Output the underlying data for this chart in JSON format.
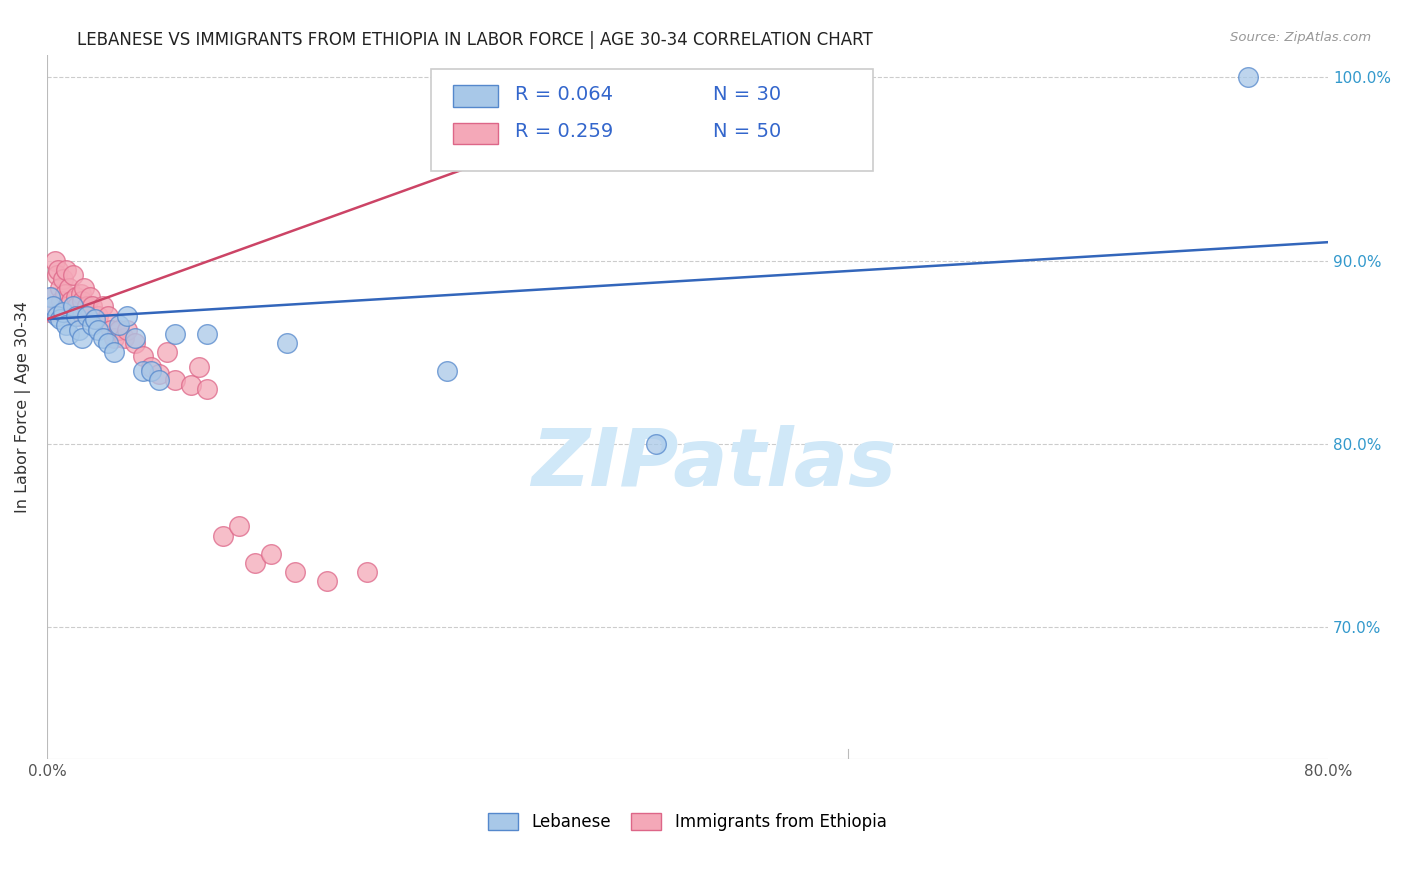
{
  "title": "LEBANESE VS IMMIGRANTS FROM ETHIOPIA IN LABOR FORCE | AGE 30-34 CORRELATION CHART",
  "source": "Source: ZipAtlas.com",
  "ylabel": "In Labor Force | Age 30-34",
  "xmin": 0.0,
  "xmax": 0.8,
  "ymin": 0.628,
  "ymax": 1.012,
  "xtick_labels": [
    "0.0%",
    "",
    "",
    "",
    "",
    "",
    "",
    "",
    "80.0%"
  ],
  "xtick_values": [
    0.0,
    0.1,
    0.2,
    0.3,
    0.4,
    0.5,
    0.6,
    0.7,
    0.8
  ],
  "ytick_labels": [
    "70.0%",
    "80.0%",
    "90.0%",
    "100.0%"
  ],
  "ytick_values": [
    0.7,
    0.8,
    0.9,
    1.0
  ],
  "legend_r_blue": "R = 0.064",
  "legend_n_blue": "N = 30",
  "legend_r_pink": "R = 0.259",
  "legend_n_pink": "N = 50",
  "legend_label_blue": "Lebanese",
  "legend_label_pink": "Immigrants from Ethiopia",
  "blue_color": "#a8c8e8",
  "pink_color": "#f4a8b8",
  "blue_edge": "#5588cc",
  "pink_edge": "#dd6688",
  "trendline_blue": "#3366bb",
  "trendline_pink": "#cc4466",
  "watermark": "ZIPatlas",
  "watermark_color": "#d0e8f8",
  "blue_scatter_x": [
    0.002,
    0.004,
    0.006,
    0.008,
    0.01,
    0.012,
    0.014,
    0.016,
    0.018,
    0.02,
    0.022,
    0.025,
    0.028,
    0.03,
    0.032,
    0.035,
    0.038,
    0.042,
    0.045,
    0.05,
    0.055,
    0.06,
    0.065,
    0.07,
    0.08,
    0.1,
    0.15,
    0.25,
    0.38,
    0.75
  ],
  "blue_scatter_y": [
    0.88,
    0.875,
    0.87,
    0.868,
    0.872,
    0.865,
    0.86,
    0.875,
    0.87,
    0.862,
    0.858,
    0.87,
    0.865,
    0.868,
    0.862,
    0.858,
    0.855,
    0.85,
    0.865,
    0.87,
    0.858,
    0.84,
    0.84,
    0.835,
    0.86,
    0.86,
    0.855,
    0.84,
    0.8,
    1.0
  ],
  "pink_scatter_x": [
    0.002,
    0.003,
    0.005,
    0.006,
    0.007,
    0.008,
    0.009,
    0.01,
    0.011,
    0.012,
    0.013,
    0.014,
    0.015,
    0.016,
    0.017,
    0.018,
    0.019,
    0.02,
    0.021,
    0.022,
    0.023,
    0.025,
    0.027,
    0.028,
    0.03,
    0.032,
    0.035,
    0.038,
    0.04,
    0.042,
    0.045,
    0.048,
    0.05,
    0.055,
    0.06,
    0.065,
    0.07,
    0.075,
    0.08,
    0.09,
    0.095,
    0.1,
    0.11,
    0.12,
    0.13,
    0.14,
    0.155,
    0.175,
    0.2,
    0.42
  ],
  "pink_scatter_y": [
    0.872,
    0.88,
    0.9,
    0.892,
    0.895,
    0.885,
    0.878,
    0.89,
    0.882,
    0.895,
    0.875,
    0.885,
    0.878,
    0.892,
    0.87,
    0.88,
    0.875,
    0.87,
    0.882,
    0.878,
    0.885,
    0.875,
    0.88,
    0.875,
    0.868,
    0.87,
    0.875,
    0.87,
    0.862,
    0.858,
    0.862,
    0.858,
    0.862,
    0.855,
    0.848,
    0.842,
    0.838,
    0.85,
    0.835,
    0.832,
    0.842,
    0.83,
    0.75,
    0.755,
    0.735,
    0.74,
    0.73,
    0.725,
    0.73,
    0.96
  ],
  "blue_trend_x": [
    0.0,
    0.8
  ],
  "blue_trend_y": [
    0.868,
    0.91
  ],
  "pink_trend_x": [
    0.0,
    0.42
  ],
  "pink_trend_y": [
    0.868,
    1.0
  ]
}
